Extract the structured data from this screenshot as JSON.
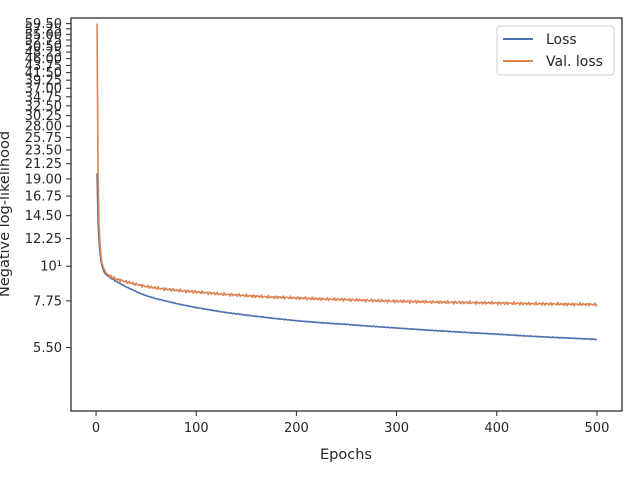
{
  "chart_data": {
    "type": "line",
    "xlabel": "Epochs",
    "ylabel": "Negative log-likelihood",
    "xlim": [
      -25,
      525
    ],
    "ylim": [
      3.45,
      62.0
    ],
    "yscale": "log",
    "grid": false,
    "legend_position": "top-right",
    "x_ticks": [
      0,
      100,
      200,
      300,
      400,
      500
    ],
    "x_tick_labels": [
      "0",
      "100",
      "200",
      "300",
      "400",
      "500"
    ],
    "y_ticks": [
      5.5,
      7.75,
      10,
      12.25,
      14.5,
      16.75,
      19.0,
      21.25,
      23.5,
      25.75,
      28.0,
      30.25,
      32.5,
      34.75,
      37.0,
      39.25,
      41.5,
      43.75,
      46.0,
      48.25,
      50.5,
      52.75,
      55.0,
      57.25,
      59.5
    ],
    "y_tick_labels": [
      "5.50",
      "7.75",
      "10¹",
      "12.25",
      "14.50",
      "16.75",
      "19.00",
      "21.25",
      "23.50",
      "25.75",
      "28.00",
      "30.25",
      "32.50",
      "34.75",
      "37.00",
      "39.25",
      "41.50",
      "43.75",
      "46.00",
      "48.25",
      "50.50",
      "52.75",
      "55.00",
      "57.25",
      "59.50"
    ],
    "x": [
      1,
      2,
      3,
      4,
      5,
      6,
      8,
      10,
      15,
      20,
      30,
      40,
      50,
      60,
      80,
      100,
      125,
      150,
      175,
      200,
      225,
      250,
      275,
      300,
      325,
      350,
      375,
      400,
      425,
      450,
      475,
      500
    ],
    "series": [
      {
        "name": "Loss",
        "color": "#4c72b0",
        "values": [
          19.8,
          14.0,
          12.0,
          11.0,
          10.4,
          10.0,
          9.6,
          9.4,
          9.15,
          8.95,
          8.6,
          8.3,
          8.05,
          7.88,
          7.6,
          7.38,
          7.15,
          6.98,
          6.83,
          6.7,
          6.6,
          6.52,
          6.43,
          6.35,
          6.27,
          6.2,
          6.13,
          6.07,
          6.0,
          5.94,
          5.89,
          5.84
        ]
      },
      {
        "name": "Val. loss",
        "color": "#dd8452",
        "values": [
          59.5,
          20.0,
          13.5,
          11.8,
          10.8,
          10.2,
          9.8,
          9.5,
          9.25,
          9.1,
          8.92,
          8.75,
          8.62,
          8.52,
          8.38,
          8.28,
          8.15,
          8.05,
          7.97,
          7.92,
          7.86,
          7.82,
          7.77,
          7.73,
          7.7,
          7.67,
          7.65,
          7.63,
          7.6,
          7.58,
          7.56,
          7.55
        ]
      }
    ]
  }
}
